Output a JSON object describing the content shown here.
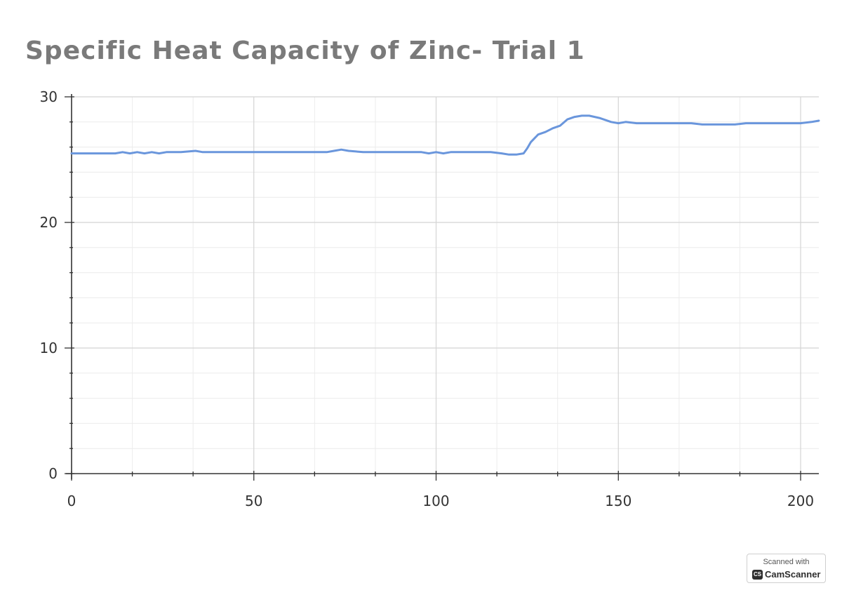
{
  "chart_data": {
    "type": "line",
    "title": "Specific Heat Capacity of Zinc- Trial 1",
    "xlabel": "",
    "ylabel": "",
    "xlim": [
      0,
      205
    ],
    "ylim": [
      0,
      30
    ],
    "x_ticks": [
      0,
      50,
      100,
      150,
      200
    ],
    "y_ticks": [
      0,
      10,
      20,
      30
    ],
    "grid": true,
    "legend": "none",
    "series": [
      {
        "color": "#6a96dc",
        "x": [
          0,
          12,
          14,
          16,
          18,
          20,
          22,
          24,
          26,
          30,
          34,
          36,
          40,
          50,
          60,
          70,
          72,
          74,
          76,
          80,
          90,
          96,
          98,
          100,
          102,
          104,
          106,
          110,
          115,
          118,
          120,
          122,
          124,
          125,
          126,
          128,
          130,
          132,
          134,
          136,
          138,
          140,
          142,
          145,
          148,
          150,
          152,
          155,
          160,
          165,
          170,
          173,
          175,
          180,
          182,
          185,
          190,
          195,
          200,
          203,
          205
        ],
        "y": [
          25.5,
          25.5,
          25.6,
          25.5,
          25.6,
          25.5,
          25.6,
          25.5,
          25.6,
          25.6,
          25.7,
          25.6,
          25.6,
          25.6,
          25.6,
          25.6,
          25.7,
          25.8,
          25.7,
          25.6,
          25.6,
          25.6,
          25.5,
          25.6,
          25.5,
          25.6,
          25.6,
          25.6,
          25.6,
          25.5,
          25.4,
          25.4,
          25.5,
          25.9,
          26.4,
          27.0,
          27.2,
          27.5,
          27.7,
          28.2,
          28.4,
          28.5,
          28.5,
          28.3,
          28.0,
          27.9,
          28.0,
          27.9,
          27.9,
          27.9,
          27.9,
          27.8,
          27.8,
          27.8,
          27.8,
          27.9,
          27.9,
          27.9,
          27.9,
          28.0,
          28.1
        ]
      }
    ]
  },
  "watermark": {
    "top": "Scanned with",
    "logo": "CS",
    "brand": "CamScanner"
  }
}
